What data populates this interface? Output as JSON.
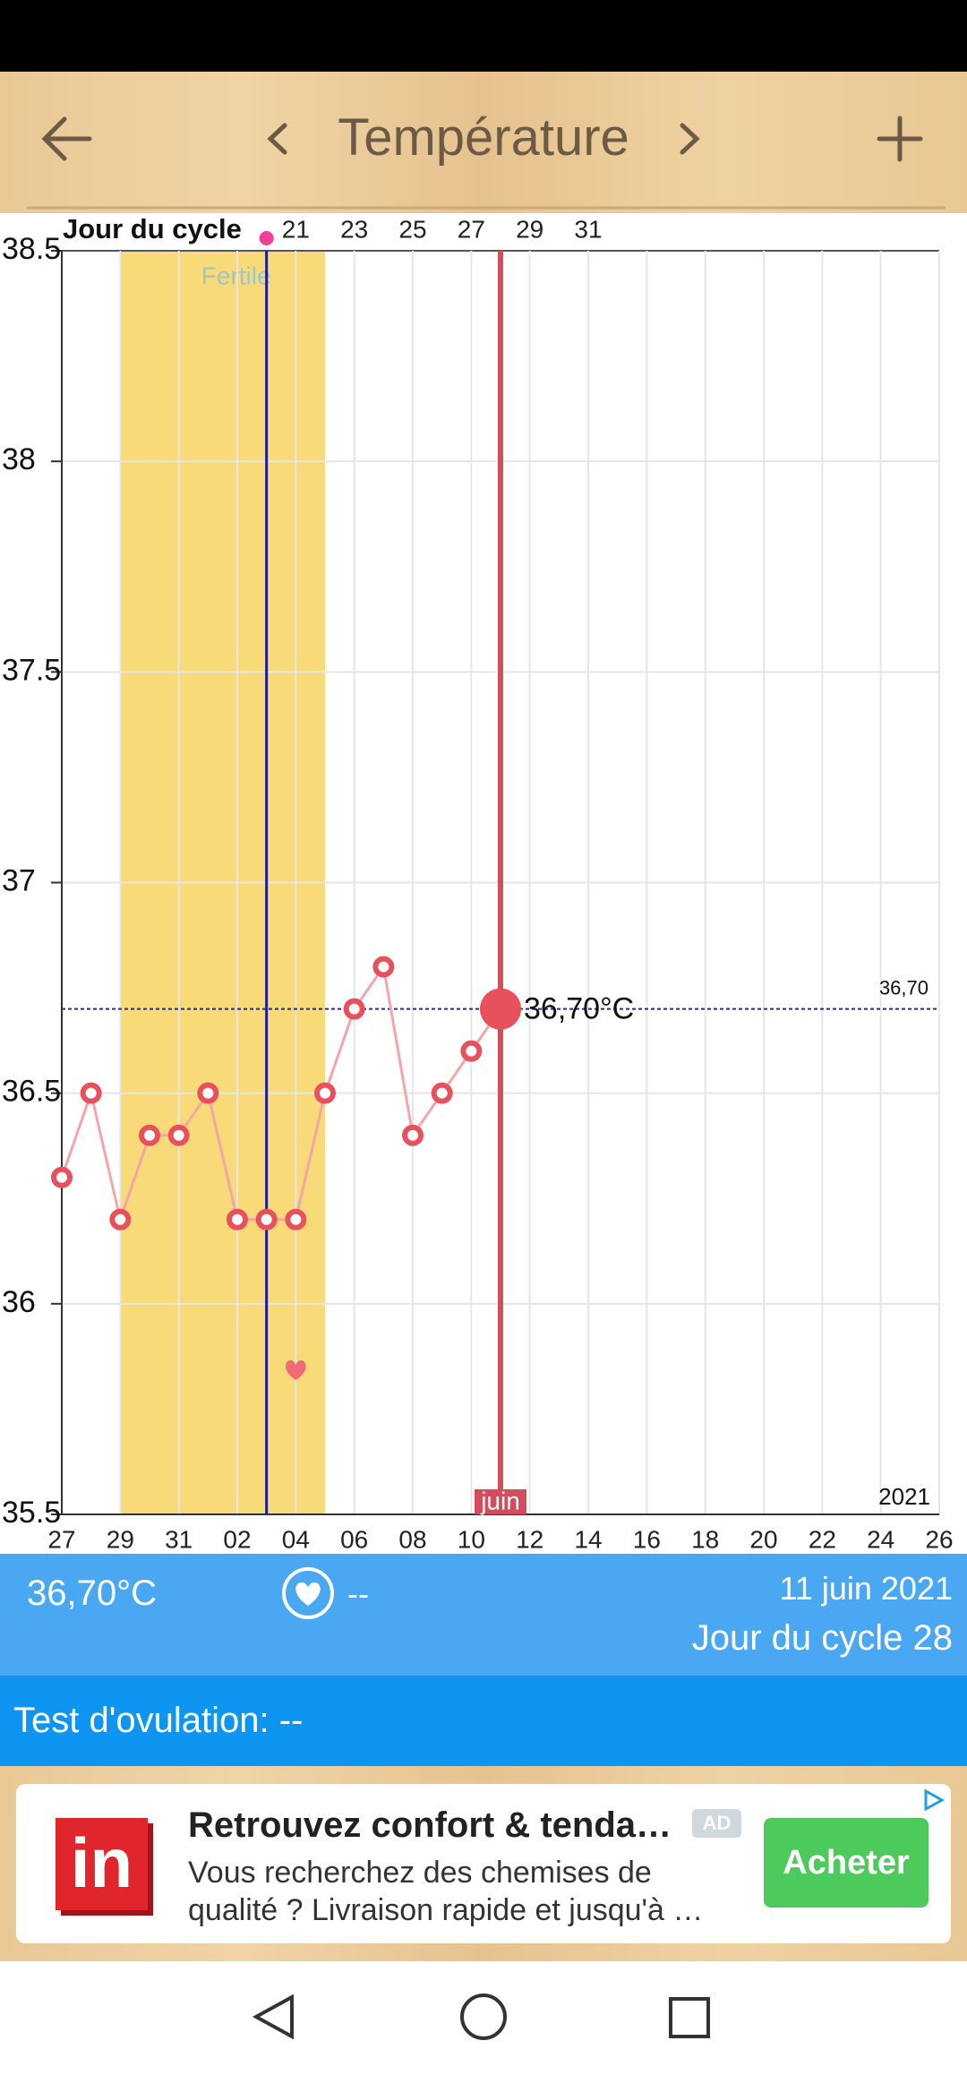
{
  "header": {
    "title": "Température"
  },
  "chart_data": {
    "type": "line",
    "top_axis_label": "Jour du cycle",
    "categories": [
      "27",
      null,
      "29",
      null,
      "31",
      null,
      "02",
      null,
      "04",
      null,
      "06",
      null,
      "08",
      null,
      "10",
      null,
      "12",
      null,
      "14",
      null,
      "16",
      null,
      "18",
      null,
      "20",
      null,
      "22",
      null,
      "24",
      null,
      "26"
    ],
    "cycle_days": [
      null,
      null,
      null,
      null,
      null,
      null,
      null,
      null,
      "21",
      null,
      "23",
      null,
      "25",
      null,
      "27",
      null,
      "29",
      null,
      "31",
      null,
      null,
      null,
      null,
      null,
      null,
      null,
      null,
      null,
      null,
      null,
      null
    ],
    "values": [
      36.3,
      36.5,
      36.2,
      36.4,
      36.4,
      36.5,
      36.2,
      36.2,
      36.2,
      36.5,
      36.7,
      36.8,
      36.4,
      36.5,
      36.6,
      36.7,
      null,
      null,
      null,
      null,
      null,
      null,
      null,
      null,
      null,
      null,
      null,
      null,
      null,
      null,
      null
    ],
    "color": "#e8505b",
    "ylim": [
      35.5,
      38.5
    ],
    "yticks": [
      35.5,
      36,
      36.5,
      37,
      37.5,
      38,
      38.5
    ],
    "grid": true,
    "fertile": {
      "label": "Fertile",
      "start": 2,
      "end": 9
    },
    "ovulation_index": 7,
    "intercourse_index": 8,
    "selected": {
      "index": 15,
      "label": "36,70°C",
      "month": "juin"
    },
    "reference_line": {
      "value": 36.7,
      "label": "36,70"
    },
    "year": "2021"
  },
  "summary": {
    "temperature": "36,70°C",
    "intercourse": "--",
    "date": "11 juin 2021",
    "cycle_day": "Jour du cycle 28"
  },
  "ovulation_test": "Test d'ovulation: --",
  "ad": {
    "logo": "in",
    "title": "Retrouvez confort & tenda…",
    "badge": "AD",
    "text_line1": "Vous recherchez des chemises de",
    "text_line2": "qualité ? Livraison rapide et jusqu'à …",
    "button": "Acheter"
  }
}
